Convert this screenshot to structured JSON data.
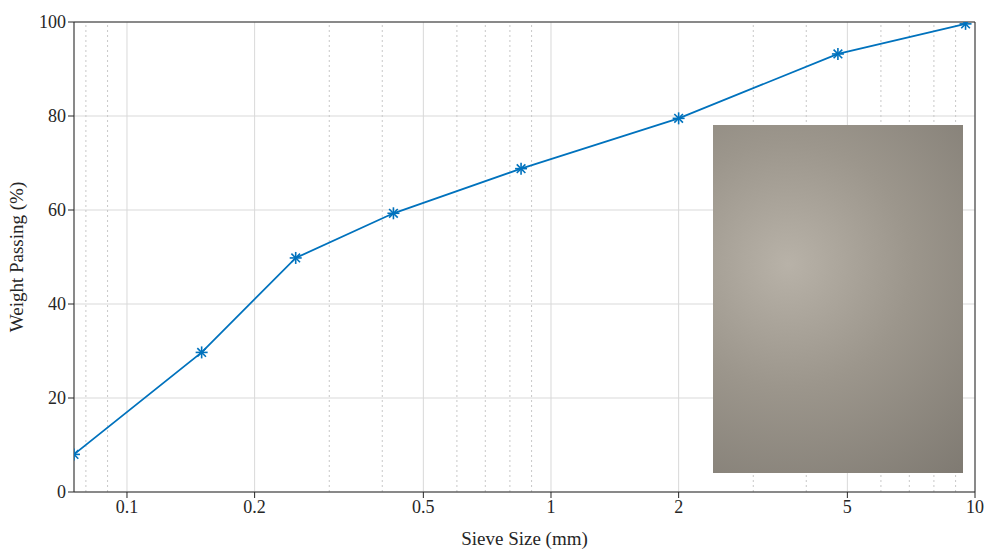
{
  "chart_data": {
    "type": "line",
    "x_label": "Sieve Size (mm)",
    "y_label": "Weight Passing (%)",
    "x": [
      0.075,
      0.15,
      0.25,
      0.425,
      0.85,
      2,
      4.75,
      9.5
    ],
    "series": [
      {
        "name": "Weight Passing",
        "color": "#0072bd",
        "marker": "asterisk",
        "line_style": "solid",
        "values": [
          8,
          29.7,
          49.8,
          59.3,
          68.8,
          79.5,
          93.2,
          99.6
        ]
      }
    ],
    "xlim": [
      0.075,
      10
    ],
    "xticks": [
      0.1,
      0.2,
      0.5,
      1,
      2,
      5,
      10
    ],
    "ylim": [
      0,
      100
    ],
    "yticks": [
      0,
      20,
      40,
      60,
      80,
      100
    ],
    "log": "x",
    "grid": true
  }
}
